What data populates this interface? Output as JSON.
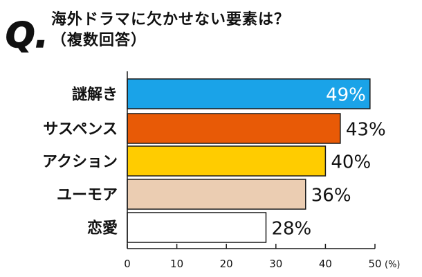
{
  "header": {
    "q_letter": "Q.",
    "title_line1": "海外ドラマに欠かせない要素は？",
    "title_line2": "（複数回答）"
  },
  "colors": {
    "mystery": "#1aa3e8",
    "suspense": "#e85a06",
    "action": "#ffcc00",
    "humor": "#ebcdb2",
    "romance": "#ffffff",
    "outline": "#1a1a1a"
  },
  "chart_data": {
    "type": "bar",
    "orientation": "horizontal",
    "categories": [
      "謎解き",
      "サスペンス",
      "アクション",
      "ユーモア",
      "恋愛"
    ],
    "values": [
      49,
      43,
      40,
      36,
      28
    ],
    "data_labels": [
      "49%",
      "43%",
      "40%",
      "36%",
      "28%"
    ],
    "xlim": [
      0,
      50
    ],
    "x_ticks": [
      "0",
      "10",
      "20",
      "30",
      "40",
      "50"
    ],
    "x_unit": "(%)",
    "grid": false,
    "legend": "none"
  }
}
